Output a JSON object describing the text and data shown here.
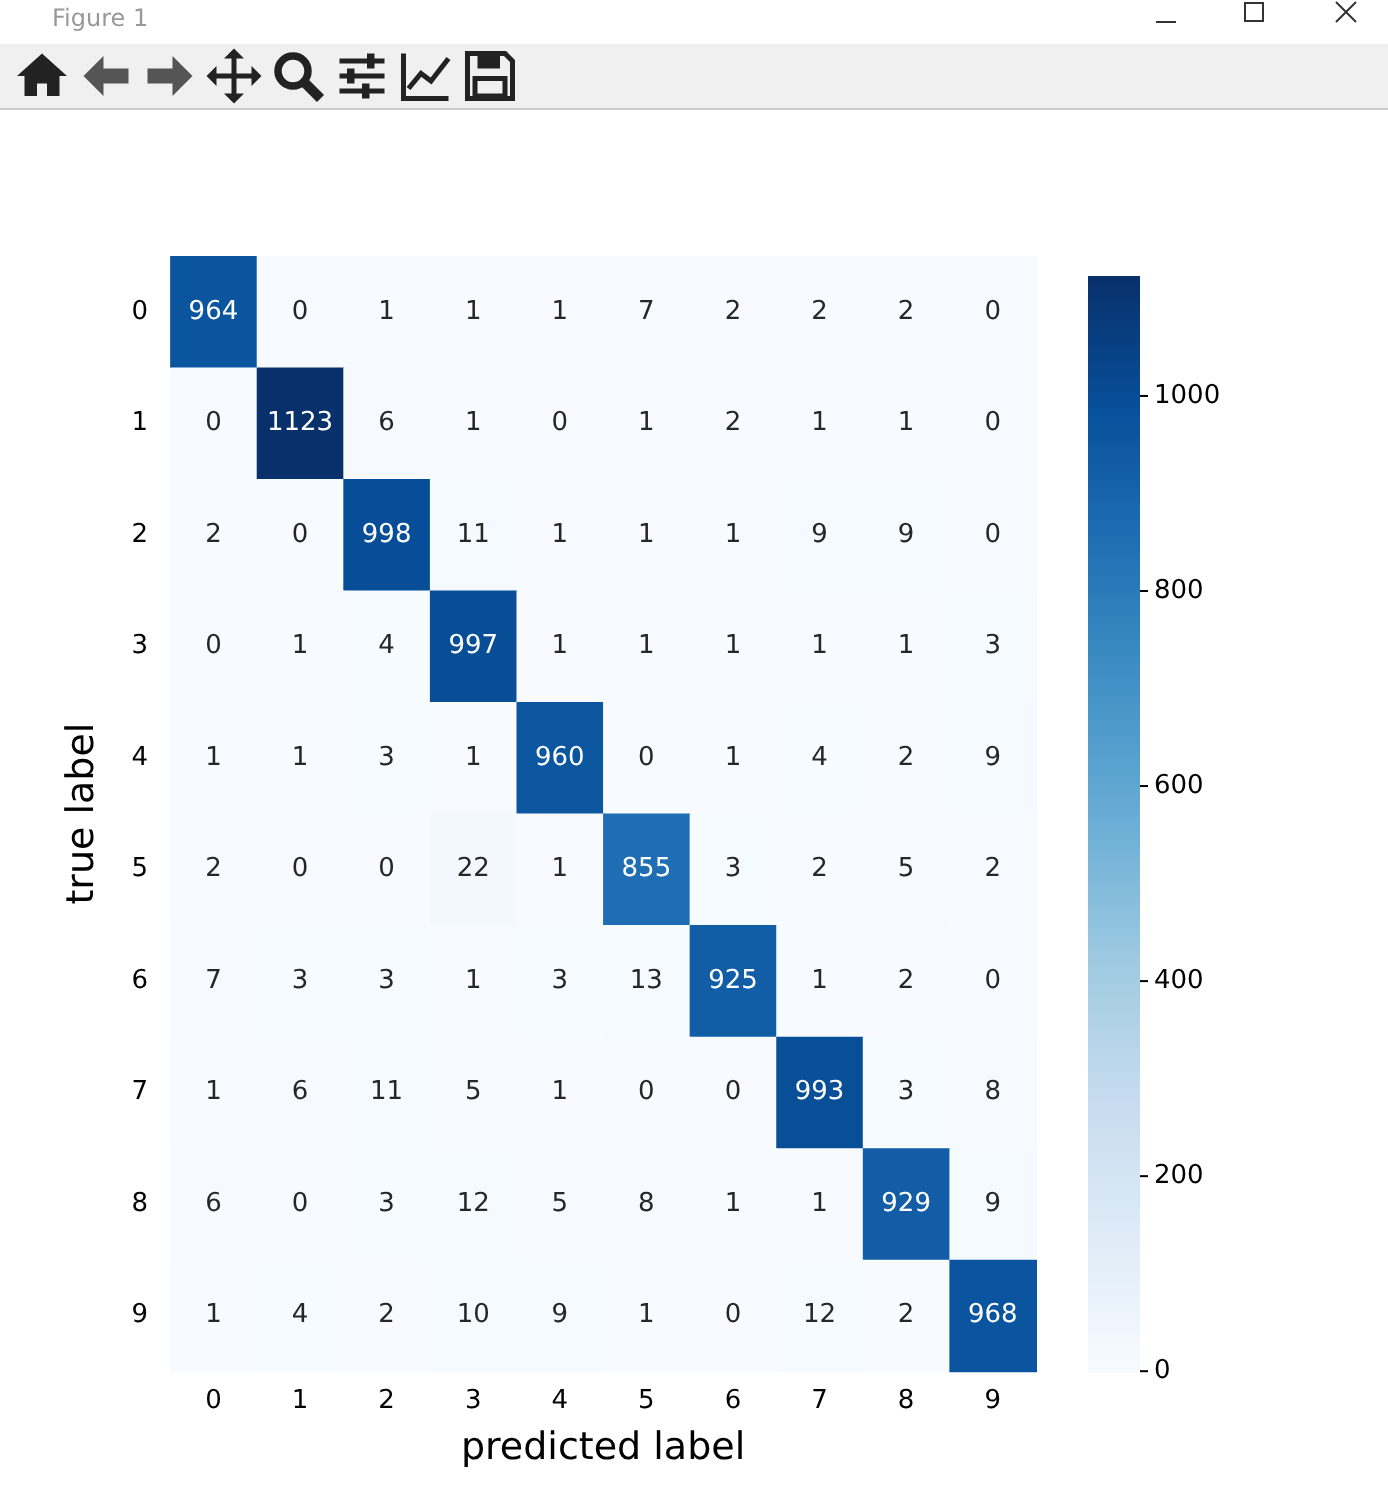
{
  "chart_data": {
    "type": "heatmap",
    "xlabel": "predicted label",
    "ylabel": "true label",
    "annotations": [
      "Figure 1"
    ],
    "categories": [
      "0",
      "1",
      "2",
      "3",
      "4",
      "5",
      "6",
      "7",
      "8",
      "9"
    ],
    "y_categories": [
      "0",
      "1",
      "2",
      "3",
      "4",
      "5",
      "6",
      "7",
      "8",
      "9"
    ],
    "cells": [
      [
        964,
        0,
        1,
        1,
        1,
        7,
        2,
        2,
        2,
        0
      ],
      [
        0,
        1123,
        6,
        1,
        0,
        1,
        2,
        1,
        1,
        0
      ],
      [
        2,
        0,
        998,
        11,
        1,
        1,
        1,
        9,
        9,
        0
      ],
      [
        0,
        1,
        4,
        997,
        1,
        1,
        1,
        1,
        1,
        3
      ],
      [
        1,
        1,
        3,
        1,
        960,
        0,
        1,
        4,
        2,
        9
      ],
      [
        2,
        0,
        0,
        22,
        1,
        855,
        3,
        2,
        5,
        2
      ],
      [
        7,
        3,
        3,
        1,
        3,
        13,
        925,
        1,
        2,
        0
      ],
      [
        1,
        6,
        11,
        5,
        1,
        0,
        0,
        993,
        3,
        8
      ],
      [
        6,
        0,
        3,
        12,
        5,
        8,
        1,
        1,
        929,
        9
      ],
      [
        1,
        4,
        2,
        10,
        9,
        1,
        0,
        12,
        2,
        968
      ]
    ],
    "clim": [
      0,
      1123
    ],
    "cticks": [
      0,
      200,
      400,
      600,
      800,
      1000
    ],
    "data_labels": true
  }
}
